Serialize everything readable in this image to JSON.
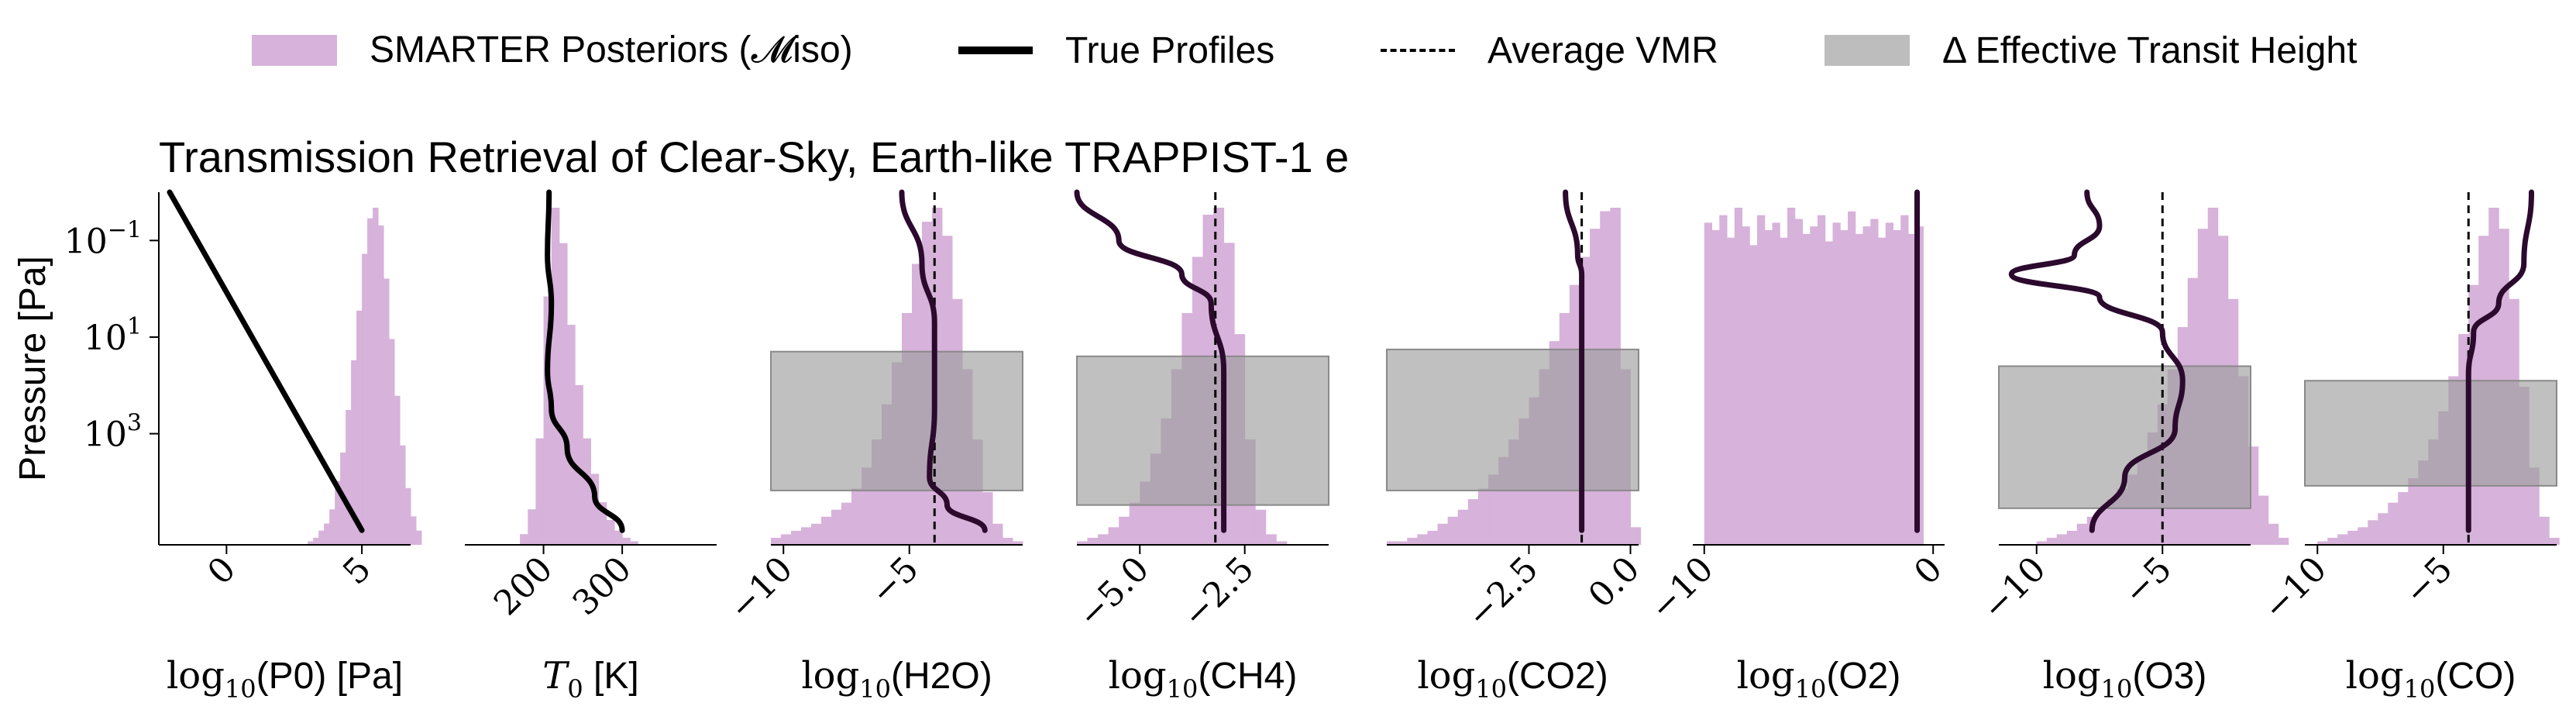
{
  "legend": [
    {
      "kind": "box",
      "color": "#d7b2da",
      "label": "SMARTER Posteriors (𝓜iso)"
    },
    {
      "kind": "line",
      "color": "#000000",
      "label": "True Profiles"
    },
    {
      "kind": "dashed",
      "color": "#000000",
      "label": "Average VMR"
    },
    {
      "kind": "box",
      "color": "#bdbdbd",
      "label": "Δ Effective Transit Height"
    }
  ],
  "title": "Transmission Retrieval of Clear-Sky, Earth-like TRAPPIST-1 e",
  "colors": {
    "posterior": "#d7b2da",
    "band": "#9e9e9e",
    "truth": "#000000",
    "truth_gas": "#2b0a2e"
  },
  "chart_data": {
    "type": "histogram-panels",
    "ylabel": "Pressure [Pa]",
    "y_axis": {
      "scale": "log",
      "inverted": true,
      "ticks": [
        {
          "value": 0.1,
          "label": "10^−1"
        },
        {
          "value": 10,
          "label": "10^1"
        },
        {
          "value": 1000,
          "label": "10^3"
        }
      ],
      "range": [
        0.01,
        200000
      ]
    },
    "panels": [
      {
        "xlabel_math": "log10",
        "xlabel_arg": "(P0)",
        "xlabel_unit": " [Pa]",
        "xlim": [
          -2.5,
          6.8
        ],
        "ticks": [
          0,
          5
        ],
        "tick_labels": [
          "0",
          "5"
        ],
        "hist": {
          "start": 3.0,
          "width": 0.2,
          "counts": [
            1,
            2,
            4,
            6,
            10,
            18,
            26,
            38,
            52,
            66,
            82,
            92,
            95,
            90,
            75,
            58,
            42,
            28,
            16,
            8,
            4
          ]
        },
        "truth": [
          [
            -2.1,
            0.01
          ],
          [
            5.0,
            100000
          ]
        ],
        "band": null,
        "vmr": null
      },
      {
        "xlabel_math": "T0",
        "xlabel_arg": "",
        "xlabel_unit": " [K]",
        "xlim": [
          100,
          420
        ],
        "ticks": [
          200,
          300
        ],
        "tick_labels": [
          "200",
          "300"
        ],
        "hist": {
          "start": 170,
          "width": 10,
          "counts": [
            3,
            10,
            30,
            70,
            95,
            85,
            62,
            45,
            30,
            20,
            12,
            7,
            4,
            2,
            1
          ]
        },
        "truth": [
          [
            207,
            0.01
          ],
          [
            205,
            0.2
          ],
          [
            210,
            2
          ],
          [
            205,
            50
          ],
          [
            210,
            300
          ],
          [
            230,
            2000
          ],
          [
            265,
            20000
          ],
          [
            300,
            100000
          ]
        ],
        "band": null,
        "vmr": null
      },
      {
        "xlabel_math": "log10",
        "xlabel_arg": "(H2O)",
        "xlabel_unit": "",
        "xlim": [
          -10.5,
          -0.5
        ],
        "ticks": [
          -10,
          -5
        ],
        "tick_labels": [
          "−10",
          "−5"
        ],
        "hist": {
          "start": -10.5,
          "width": 0.4,
          "counts": [
            2,
            3,
            4,
            5,
            6,
            8,
            10,
            12,
            16,
            22,
            30,
            40,
            52,
            66,
            80,
            92,
            96,
            88,
            70,
            50,
            30,
            15,
            6,
            2,
            1
          ]
        },
        "truth": [
          [
            -5.3,
            0.01
          ],
          [
            -4.5,
            0.3
          ],
          [
            -4.0,
            5
          ],
          [
            -4.0,
            300
          ],
          [
            -4.2,
            8000
          ],
          [
            -3.5,
            30000
          ],
          [
            -2.0,
            100000
          ]
        ],
        "band": {
          "x": [
            -10.5,
            -0.5
          ],
          "p": [
            20,
            15000
          ]
        },
        "vmr": -4.0
      },
      {
        "xlabel_math": "log10",
        "xlabel_arg": "(CH4)",
        "xlabel_unit": "",
        "xlim": [
          -6.5,
          -0.5
        ],
        "ticks": [
          -5.0,
          -2.5
        ],
        "tick_labels": [
          "−5.0",
          "−2.5"
        ],
        "hist": {
          "start": -6.5,
          "width": 0.25,
          "counts": [
            1,
            2,
            3,
            5,
            8,
            12,
            18,
            26,
            36,
            50,
            66,
            82,
            94,
            96,
            86,
            60,
            30,
            10,
            3,
            1,
            0,
            0,
            0,
            0
          ]
        },
        "truth": [
          [
            -6.5,
            0.01
          ],
          [
            -5.5,
            0.1
          ],
          [
            -4.0,
            0.5
          ],
          [
            -3.3,
            2
          ],
          [
            -3.0,
            50
          ],
          [
            -3.0,
            100000
          ]
        ],
        "band": {
          "x": [
            -6.5,
            -0.5
          ],
          "p": [
            25,
            30000
          ]
        },
        "vmr": -3.2
      },
      {
        "xlabel_math": "log10",
        "xlabel_arg": "(CO2)",
        "xlabel_unit": "",
        "xlim": [
          -6.0,
          0.2
        ],
        "ticks": [
          -2.5,
          0.0
        ],
        "tick_labels": [
          "−2.5",
          "0.0"
        ],
        "hist": {
          "start": -6.0,
          "width": 0.25,
          "counts": [
            1,
            1,
            2,
            3,
            4,
            6,
            8,
            10,
            13,
            16,
            20,
            25,
            30,
            36,
            42,
            50,
            58,
            66,
            74,
            82,
            90,
            95,
            96,
            50,
            5
          ]
        },
        "truth": [
          [
            -1.6,
            0.01
          ],
          [
            -1.3,
            0.2
          ],
          [
            -1.2,
            0.5
          ],
          [
            -1.2,
            100000
          ]
        ],
        "band": {
          "x": [
            -6.0,
            0.2
          ],
          "p": [
            18,
            15000
          ]
        },
        "vmr": -1.2
      },
      {
        "xlabel_math": "log10",
        "xlabel_arg": "(O2)",
        "xlabel_unit": "",
        "xlim": [
          -10.5,
          0.5
        ],
        "ticks": [
          -10,
          0
        ],
        "tick_labels": [
          "−10",
          "0"
        ],
        "hist": {
          "start": -10.0,
          "width": 0.33,
          "counts": [
            86,
            84,
            88,
            82,
            90,
            85,
            80,
            88,
            84,
            86,
            82,
            90,
            87,
            83,
            85,
            88,
            81,
            86,
            84,
            89,
            83,
            85,
            87,
            82,
            86,
            84,
            88,
            83,
            85
          ]
        },
        "truth": [
          [
            -0.7,
            0.01
          ],
          [
            -0.7,
            100000
          ]
        ],
        "band": null,
        "vmr": null
      },
      {
        "xlabel_math": "log10",
        "xlabel_arg": "(O3)",
        "xlabel_unit": "",
        "xlim": [
          -11.5,
          -1.5
        ],
        "ticks": [
          -10,
          -5
        ],
        "tick_labels": [
          "−10",
          "−5"
        ],
        "hist": {
          "start": -10.0,
          "width": 0.4,
          "counts": [
            1,
            2,
            3,
            4,
            6,
            8,
            10,
            13,
            16,
            20,
            25,
            32,
            40,
            50,
            62,
            76,
            90,
            96,
            88,
            70,
            48,
            28,
            14,
            6,
            2
          ]
        },
        "truth": [
          [
            -8.0,
            0.01
          ],
          [
            -7.5,
            0.05
          ],
          [
            -8.5,
            0.2
          ],
          [
            -11.0,
            0.5
          ],
          [
            -7.5,
            1.5
          ],
          [
            -5.0,
            8
          ],
          [
            -4.2,
            80
          ],
          [
            -4.5,
            800
          ],
          [
            -6.5,
            8000
          ],
          [
            -7.8,
            100000
          ]
        ],
        "band": {
          "x": [
            -11.5,
            -1.5
          ],
          "p": [
            40,
            35000
          ]
        },
        "vmr": -5.0
      },
      {
        "xlabel_math": "log10",
        "xlabel_arg": "(CO)",
        "xlabel_unit": "",
        "xlim": [
          -10.5,
          -0.5
        ],
        "ticks": [
          -10,
          -5
        ],
        "tick_labels": [
          "−10",
          "−5"
        ],
        "hist": {
          "start": -10.0,
          "width": 0.4,
          "counts": [
            1,
            2,
            3,
            4,
            5,
            7,
            9,
            12,
            15,
            19,
            24,
            30,
            38,
            48,
            60,
            74,
            88,
            96,
            90,
            70,
            45,
            22,
            8,
            2
          ]
        },
        "truth": [
          [
            -1.5,
            0.01
          ],
          [
            -1.8,
            0.3
          ],
          [
            -2.8,
            2
          ],
          [
            -3.8,
            8
          ],
          [
            -4.0,
            60
          ],
          [
            -4.0,
            100000
          ]
        ],
        "band": {
          "x": [
            -10.5,
            -0.5
          ],
          "p": [
            80,
            12000
          ]
        },
        "vmr": -4.0
      }
    ]
  }
}
